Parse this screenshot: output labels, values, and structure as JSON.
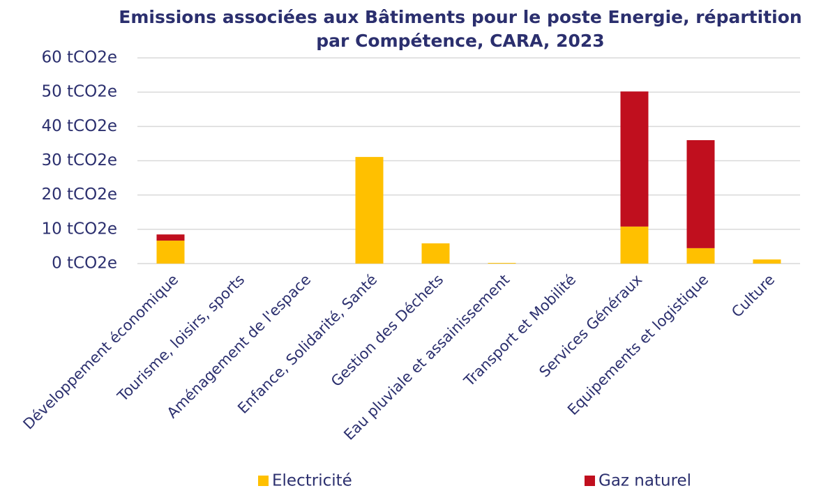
{
  "chart_data": {
    "type": "stacked-bar",
    "title": "Emissions associées aux Bâtiments pour le poste Energie, répartition par Compétence, CARA, 2023",
    "categories": [
      "Développement économique",
      "Tourisme, loisirs, sports",
      "Aménagement de l'espace",
      "Enfance, Solidarité, Santé",
      "Gestion des Déchets",
      "Eau pluviale et assainissement",
      "Transport et Mobilité",
      "Services Généraux",
      "Equipements et logistique",
      "Culture"
    ],
    "series": [
      {
        "name": "Electricité",
        "color": "#ffc000",
        "values": [
          6.7,
          0,
          0,
          31.1,
          5.9,
          0.2,
          0,
          10.8,
          4.5,
          1.2
        ]
      },
      {
        "name": "Gaz naturel",
        "color": "#c00f1e",
        "values": [
          1.8,
          0,
          0,
          0,
          0,
          0,
          0,
          39.4,
          31.5,
          0
        ]
      }
    ],
    "ylim": [
      0,
      60
    ],
    "yticks": [
      {
        "value": 0,
        "label": "0 tCO2e"
      },
      {
        "value": 10,
        "label": "10 tCO2e"
      },
      {
        "value": 20,
        "label": "20 tCO2e"
      },
      {
        "value": 30,
        "label": "30 tCO2e"
      },
      {
        "value": 40,
        "label": "40 tCO2e"
      },
      {
        "value": 50,
        "label": "50 tCO2e"
      },
      {
        "value": 60,
        "label": "60 tCO2e"
      }
    ],
    "grid": true,
    "legend": "bottom"
  }
}
